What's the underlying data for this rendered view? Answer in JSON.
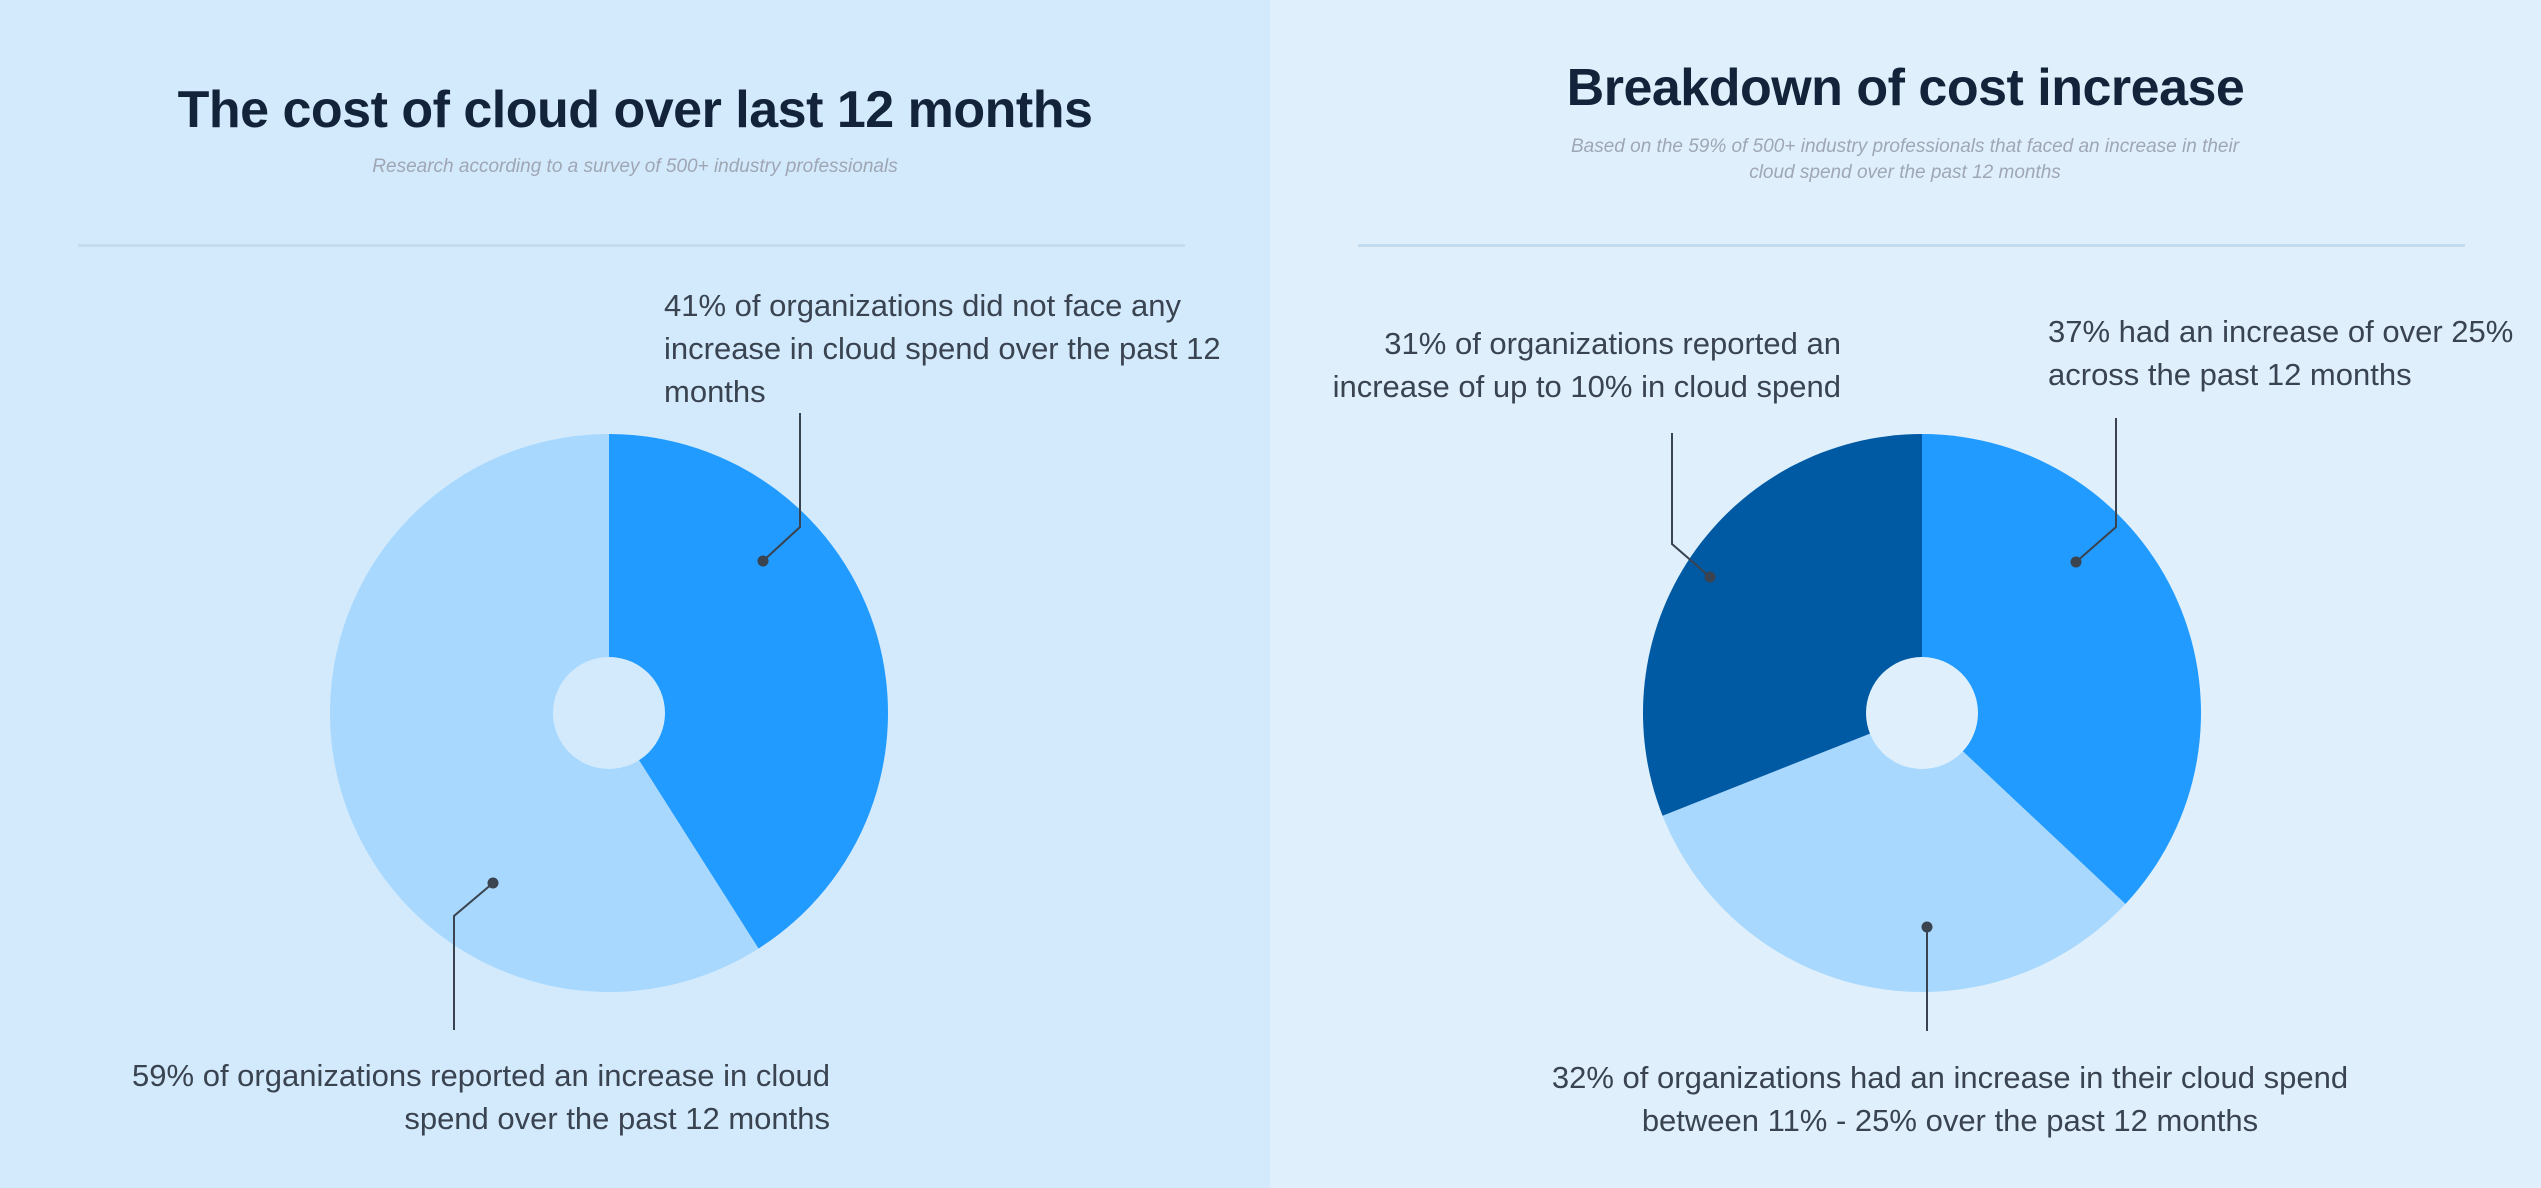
{
  "colors": {
    "light": "#a8d8fd",
    "mid": "#219bff",
    "dark": "#0059a3",
    "line": "#3a4350"
  },
  "chart_data": [
    {
      "type": "pie",
      "title": "The cost of cloud over last 12 months",
      "subtitle": "Research according to a survey of 500+ industry professionals",
      "slices": [
        {
          "label": "41% of organizations did not face any increase in cloud spend over the past 12 months",
          "value": 41,
          "color": "#219bff"
        },
        {
          "label": "59% of organizations reported an increase in cloud spend over the past 12 months",
          "value": 59,
          "color": "#a8d8fd"
        }
      ]
    },
    {
      "type": "pie",
      "title": "Breakdown of cost increase",
      "subtitle": "Based on the 59% of 500+ industry professionals that faced an increase in their cloud spend over the past 12 months",
      "slices": [
        {
          "label": "37% had an increase of over 25% across the past 12 months",
          "value": 37,
          "color": "#219bff"
        },
        {
          "label": "32% of organizations had an increase in their cloud spend between 11% - 25% over the past 12 months",
          "value": 32,
          "color": "#a8d8fd"
        },
        {
          "label": "31% of organizations reported an increase of up to 10% in cloud spend",
          "value": 31,
          "color": "#0059a3"
        }
      ]
    }
  ]
}
